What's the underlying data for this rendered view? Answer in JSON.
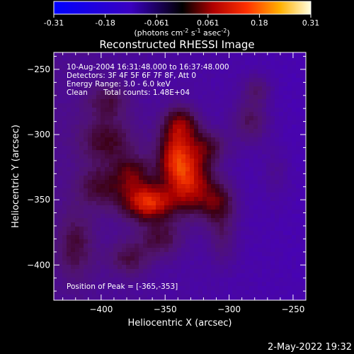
{
  "chart_data": {
    "type": "heatmap",
    "title": "Reconstructed RHESSI Image",
    "xlabel": "Heliocentric X (arcsec)",
    "ylabel": "Heliocentric Y (arcsec)",
    "xlim": [
      -437,
      -240
    ],
    "ylim": [
      -427,
      -237
    ],
    "xticks": [
      -400,
      -350,
      -300,
      -250
    ],
    "yticks": [
      -250,
      -300,
      -350,
      -400
    ],
    "colorbar": {
      "range": [
        -0.31,
        0.31
      ],
      "ticks": [
        "-0.31",
        "-0.18",
        "-0.061",
        "0.061",
        "0.18",
        "0.31"
      ],
      "unit_label_parts": [
        "(photons cm",
        "-2",
        " s",
        "-1",
        " asec",
        "-2",
        ")"
      ]
    },
    "annotations": [
      "10-Aug-2004 16:31:48.000 to 16:37:48.000",
      "Detectors: 3F 4F 5F 6F 7F 8F, Att 0",
      "Energy Range: 3.0 - 6.0 keV",
      "Clean",
      "Total counts: 1.48E+04"
    ],
    "peak_label": "Position of Peak = [-365,-353]",
    "peak": [
      -365,
      -353
    ],
    "sources": [
      {
        "x": -363,
        "y": -352,
        "sx": 14,
        "sy": 10,
        "amp": 0.24
      },
      {
        "x": -330,
        "y": -338,
        "sx": 12,
        "sy": 16,
        "amp": 0.2
      },
      {
        "x": -343,
        "y": -318,
        "sx": 10,
        "sy": 14,
        "amp": 0.19
      },
      {
        "x": -338,
        "y": -292,
        "sx": 10,
        "sy": 10,
        "amp": 0.16
      },
      {
        "x": -308,
        "y": -352,
        "sx": 10,
        "sy": 12,
        "amp": 0.13
      },
      {
        "x": -318,
        "y": -310,
        "sx": 12,
        "sy": 10,
        "amp": 0.12
      },
      {
        "x": -395,
        "y": -305,
        "sx": 16,
        "sy": 12,
        "amp": 0.11
      },
      {
        "x": -400,
        "y": -340,
        "sx": 14,
        "sy": 12,
        "amp": 0.1
      },
      {
        "x": -395,
        "y": -275,
        "sx": 12,
        "sy": 10,
        "amp": 0.09
      },
      {
        "x": -283,
        "y": -290,
        "sx": 10,
        "sy": 12,
        "amp": 0.1
      },
      {
        "x": -278,
        "y": -265,
        "sx": 8,
        "sy": 8,
        "amp": 0.08
      },
      {
        "x": -353,
        "y": -380,
        "sx": 12,
        "sy": 10,
        "amp": 0.1
      },
      {
        "x": -378,
        "y": -395,
        "sx": 12,
        "sy": 10,
        "amp": 0.09
      },
      {
        "x": -420,
        "y": -385,
        "sx": 10,
        "sy": 18,
        "amp": 0.09
      },
      {
        "x": -305,
        "y": -380,
        "sx": 8,
        "sy": 14,
        "amp": 0.07
      },
      {
        "x": -375,
        "y": -330,
        "sx": 10,
        "sy": 10,
        "amp": 0.12
      },
      {
        "x": -263,
        "y": -330,
        "sx": 8,
        "sy": 16,
        "amp": 0.04
      }
    ],
    "background": -0.1,
    "footer_date": "2-May-2022 19:32"
  }
}
